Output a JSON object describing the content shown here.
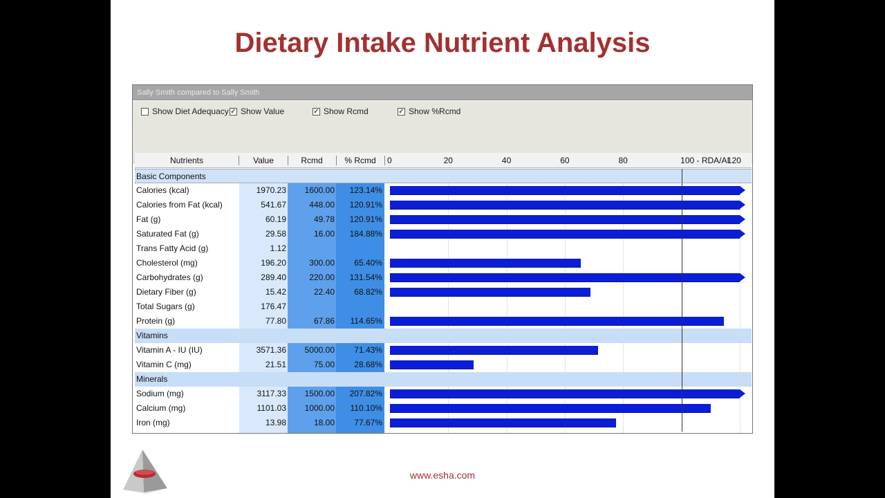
{
  "title": "Dietary Intake Nutrient Analysis",
  "window": {
    "title": "Sally Smith compared to Sally Smith"
  },
  "options": [
    {
      "label": "Show Diet Adequacy",
      "checked": false
    },
    {
      "label": "Show Value",
      "checked": true
    },
    {
      "label": "Show Rcmd",
      "checked": true
    },
    {
      "label": "Show %Rcmd",
      "checked": true
    }
  ],
  "columns": {
    "nutrients": "Nutrients",
    "value": "Value",
    "rcmd": "Rcmd",
    "pct_rcmd": "% Rcmd"
  },
  "axis_ticks": [
    "0",
    "20",
    "40",
    "60",
    "80",
    "100 - RDA/AI",
    "120"
  ],
  "rows": [
    {
      "type": "section",
      "label": "Basic Components"
    },
    {
      "type": "nutrient",
      "name": "Calories (kcal)",
      "value": "1970.23",
      "rcmd": "1600.00",
      "pct": "123.14%",
      "pct_num": 123.14
    },
    {
      "type": "nutrient",
      "name": "Calories from Fat (kcal)",
      "value": "541.67",
      "rcmd": "448.00",
      "pct": "120.91%",
      "pct_num": 120.91
    },
    {
      "type": "nutrient",
      "name": "Fat (g)",
      "value": "60.19",
      "rcmd": "49.78",
      "pct": "120.91%",
      "pct_num": 120.91
    },
    {
      "type": "nutrient",
      "name": "Saturated Fat (g)",
      "value": "29.58",
      "rcmd": "16.00",
      "pct": "184.88%",
      "pct_num": 184.88
    },
    {
      "type": "nutrient",
      "name": "Trans Fatty Acid (g)",
      "value": "1.12",
      "rcmd": "",
      "pct": "",
      "pct_num": null
    },
    {
      "type": "nutrient",
      "name": "Cholesterol (mg)",
      "value": "196.20",
      "rcmd": "300.00",
      "pct": "65.40%",
      "pct_num": 65.4
    },
    {
      "type": "nutrient",
      "name": "Carbohydrates (g)",
      "value": "289.40",
      "rcmd": "220.00",
      "pct": "131.54%",
      "pct_num": 131.54
    },
    {
      "type": "nutrient",
      "name": "Dietary Fiber (g)",
      "value": "15.42",
      "rcmd": "22.40",
      "pct": "68.82%",
      "pct_num": 68.82
    },
    {
      "type": "nutrient",
      "name": "Total Sugars (g)",
      "value": "176.47",
      "rcmd": "",
      "pct": "",
      "pct_num": null
    },
    {
      "type": "nutrient",
      "name": "Protein (g)",
      "value": "77.80",
      "rcmd": "67.86",
      "pct": "114.65%",
      "pct_num": 114.65
    },
    {
      "type": "section",
      "label": "Vitamins"
    },
    {
      "type": "nutrient",
      "name": "Vitamin A - IU (IU)",
      "value": "3571.36",
      "rcmd": "5000.00",
      "pct": "71.43%",
      "pct_num": 71.43
    },
    {
      "type": "nutrient",
      "name": "Vitamin C (mg)",
      "value": "21.51",
      "rcmd": "75.00",
      "pct": "28.68%",
      "pct_num": 28.68
    },
    {
      "type": "section",
      "label": "Minerals"
    },
    {
      "type": "nutrient",
      "name": "Sodium (mg)",
      "value": "3117.33",
      "rcmd": "1500.00",
      "pct": "207.82%",
      "pct_num": 207.82
    },
    {
      "type": "nutrient",
      "name": "Calcium (mg)",
      "value": "1101.03",
      "rcmd": "1000.00",
      "pct": "110.10%",
      "pct_num": 110.1
    },
    {
      "type": "nutrient",
      "name": "Iron (mg)",
      "value": "13.98",
      "rcmd": "18.00",
      "pct": "77.67%",
      "pct_num": 77.67
    }
  ],
  "bar_axis_max": 120,
  "colors": {
    "title": "#a33131",
    "bar": "#0b1ed6",
    "value_col": "#d9e9fb",
    "rcmd_col": "#5fa0ec",
    "pct_col": "#3e8ee6"
  },
  "footer": {
    "url": "www.esha.com"
  },
  "logo_icon": "esha-pyramid-logo-icon"
}
